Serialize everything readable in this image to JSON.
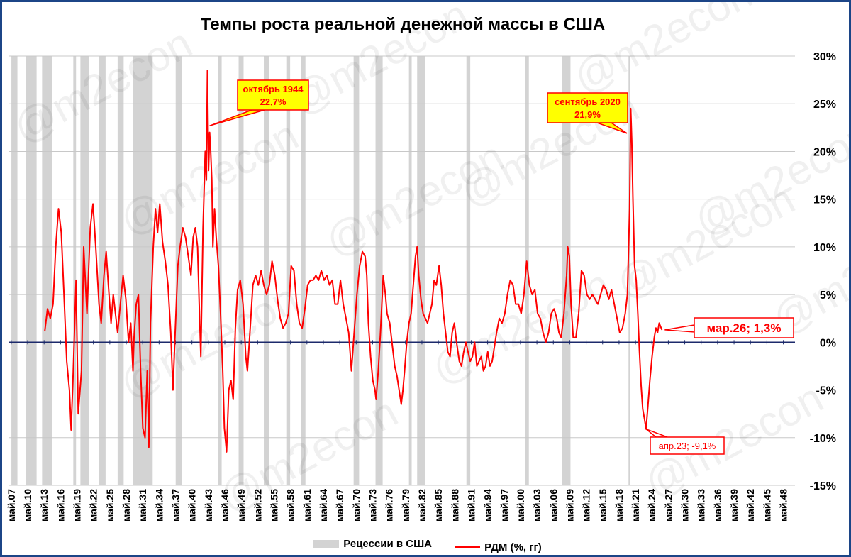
{
  "watermark": "@m2econ",
  "chart_data": {
    "type": "line",
    "title": "Темпы роста реальной денежной массы в США",
    "xlabel": "",
    "ylabel": "",
    "ylim": [
      -15,
      30
    ],
    "xlim": [
      1907.0,
      2050.5
    ],
    "y_ticks": [
      -15,
      -10,
      -5,
      0,
      5,
      10,
      15,
      20,
      25,
      30
    ],
    "y_tick_labels": [
      "-15%",
      "-10%",
      "-5%",
      "0%",
      "5%",
      "10%",
      "15%",
      "20%",
      "25%",
      "30%"
    ],
    "x_tick_labels": [
      "май.07",
      "май.10",
      "май.13",
      "май.16",
      "май.19",
      "май.22",
      "май.25",
      "май.28",
      "май.31",
      "май.34",
      "май.37",
      "май.40",
      "май.43",
      "май.46",
      "май.49",
      "май.52",
      "май.55",
      "май.58",
      "май.61",
      "май.64",
      "май.67",
      "май.70",
      "май.73",
      "май.76",
      "май.79",
      "май.82",
      "май.85",
      "май.88",
      "май.91",
      "май.94",
      "май.97",
      "май.00",
      "май.03",
      "май.06",
      "май.09",
      "май.12",
      "май.15",
      "май.18",
      "май.21",
      "май.24",
      "май.27",
      "май.30",
      "май.33",
      "май.36",
      "май.39",
      "май.42",
      "май.45",
      "май.48"
    ],
    "grid": "horizontal",
    "legend": "bottom",
    "colors": {
      "line": "#ff0000",
      "recession": "#d3d3d3",
      "zero_line": "#1c2a6b",
      "grid": "#c8c8c8"
    },
    "recessions": [
      [
        1907.4,
        1908.5
      ],
      [
        1910.1,
        1912.0
      ],
      [
        1913.0,
        1914.9
      ],
      [
        1918.7,
        1919.2
      ],
      [
        1920.0,
        1921.6
      ],
      [
        1923.4,
        1924.6
      ],
      [
        1926.8,
        1927.9
      ],
      [
        1929.6,
        1933.2
      ],
      [
        1937.4,
        1938.5
      ],
      [
        1945.1,
        1945.8
      ],
      [
        1948.9,
        1949.8
      ],
      [
        1953.5,
        1954.4
      ],
      [
        1957.6,
        1958.3
      ],
      [
        1960.3,
        1961.1
      ],
      [
        1969.9,
        1970.9
      ],
      [
        1973.9,
        1975.2
      ],
      [
        1980.0,
        1980.5
      ],
      [
        1981.5,
        1982.9
      ],
      [
        1990.5,
        1991.2
      ],
      [
        2001.2,
        2001.9
      ],
      [
        2007.9,
        2009.5
      ],
      [
        2020.1,
        2020.3
      ]
    ],
    "series": [
      {
        "name": "РДМ (%, гг)",
        "points": [
          [
            1913.5,
            1.2
          ],
          [
            1914.0,
            3.5
          ],
          [
            1914.5,
            2.5
          ],
          [
            1915.0,
            4.0
          ],
          [
            1915.5,
            10.0
          ],
          [
            1916.0,
            14.0
          ],
          [
            1916.5,
            11.5
          ],
          [
            1917.0,
            5.0
          ],
          [
            1917.5,
            -2.0
          ],
          [
            1918.0,
            -5.0
          ],
          [
            1918.3,
            -9.2
          ],
          [
            1918.7,
            -3.0
          ],
          [
            1919.2,
            6.5
          ],
          [
            1919.6,
            -7.5
          ],
          [
            1920.2,
            -3.0
          ],
          [
            1920.6,
            10.0
          ],
          [
            1921.2,
            3.0
          ],
          [
            1921.8,
            12.0
          ],
          [
            1922.3,
            14.5
          ],
          [
            1922.8,
            10.0
          ],
          [
            1923.4,
            4.0
          ],
          [
            1923.8,
            2.0
          ],
          [
            1924.3,
            7.0
          ],
          [
            1924.7,
            9.5
          ],
          [
            1925.1,
            6.0
          ],
          [
            1925.6,
            2.0
          ],
          [
            1926.0,
            5.0
          ],
          [
            1926.4,
            3.0
          ],
          [
            1926.8,
            1.0
          ],
          [
            1927.3,
            4.0
          ],
          [
            1927.8,
            7.0
          ],
          [
            1928.3,
            4.5
          ],
          [
            1928.8,
            0.0
          ],
          [
            1929.2,
            2.0
          ],
          [
            1929.6,
            -3.0
          ],
          [
            1929.8,
            0.5
          ],
          [
            1930.2,
            4.0
          ],
          [
            1930.6,
            5.0
          ],
          [
            1931.0,
            -3.0
          ],
          [
            1931.4,
            -9.0
          ],
          [
            1931.8,
            -10.0
          ],
          [
            1932.2,
            -3.0
          ],
          [
            1932.5,
            -11.0
          ],
          [
            1932.8,
            2.0
          ],
          [
            1933.3,
            10.0
          ],
          [
            1933.7,
            14.0
          ],
          [
            1934.1,
            11.5
          ],
          [
            1934.5,
            14.5
          ],
          [
            1935.0,
            10.5
          ],
          [
            1935.5,
            8.5
          ],
          [
            1936.0,
            6.0
          ],
          [
            1936.5,
            1.0
          ],
          [
            1936.9,
            -5.0
          ],
          [
            1937.3,
            1.0
          ],
          [
            1937.8,
            8.0
          ],
          [
            1938.2,
            10.0
          ],
          [
            1938.7,
            12.0
          ],
          [
            1939.2,
            11.0
          ],
          [
            1939.7,
            9.0
          ],
          [
            1940.2,
            7.0
          ],
          [
            1940.6,
            11.0
          ],
          [
            1941.0,
            12.0
          ],
          [
            1941.4,
            10.0
          ],
          [
            1941.7,
            4.0
          ],
          [
            1942.0,
            -1.5
          ],
          [
            1942.4,
            12.0
          ],
          [
            1942.8,
            20.0
          ],
          [
            1943.0,
            17.0
          ],
          [
            1943.2,
            28.5
          ],
          [
            1943.4,
            18.0
          ],
          [
            1943.6,
            22.0
          ],
          [
            1943.8,
            20.0
          ],
          [
            1944.0,
            17.0
          ],
          [
            1944.2,
            10.0
          ],
          [
            1944.5,
            14.0
          ],
          [
            1944.8,
            11.0
          ],
          [
            1945.2,
            8.0
          ],
          [
            1945.6,
            3.0
          ],
          [
            1946.0,
            -3.0
          ],
          [
            1946.3,
            -9.0
          ],
          [
            1946.7,
            -11.5
          ],
          [
            1947.1,
            -5.0
          ],
          [
            1947.5,
            -4.0
          ],
          [
            1947.9,
            -6.0
          ],
          [
            1948.3,
            1.5
          ],
          [
            1948.7,
            5.5
          ],
          [
            1949.2,
            6.5
          ],
          [
            1949.7,
            4.0
          ],
          [
            1950.2,
            -1.5
          ],
          [
            1950.5,
            -3.0
          ],
          [
            1950.9,
            0.5
          ],
          [
            1951.5,
            6.0
          ],
          [
            1952.0,
            7.0
          ],
          [
            1952.5,
            6.0
          ],
          [
            1953.0,
            7.5
          ],
          [
            1953.5,
            6.0
          ],
          [
            1954.0,
            5.0
          ],
          [
            1954.5,
            6.0
          ],
          [
            1955.0,
            8.5
          ],
          [
            1955.5,
            7.0
          ],
          [
            1956.0,
            4.5
          ],
          [
            1956.5,
            2.5
          ],
          [
            1957.0,
            1.5
          ],
          [
            1957.5,
            2.0
          ],
          [
            1958.0,
            3.0
          ],
          [
            1958.5,
            8.0
          ],
          [
            1959.0,
            7.5
          ],
          [
            1959.5,
            4.0
          ],
          [
            1960.0,
            2.0
          ],
          [
            1960.5,
            1.5
          ],
          [
            1961.0,
            3.5
          ],
          [
            1961.5,
            6.0
          ],
          [
            1962.0,
            6.5
          ],
          [
            1962.5,
            6.5
          ],
          [
            1963.0,
            7.0
          ],
          [
            1963.5,
            6.5
          ],
          [
            1964.0,
            7.5
          ],
          [
            1964.5,
            6.5
          ],
          [
            1965.0,
            7.0
          ],
          [
            1965.5,
            6.0
          ],
          [
            1966.0,
            6.5
          ],
          [
            1966.5,
            4.0
          ],
          [
            1967.0,
            4.0
          ],
          [
            1967.5,
            6.5
          ],
          [
            1968.0,
            4.0
          ],
          [
            1968.5,
            2.5
          ],
          [
            1969.0,
            1.0
          ],
          [
            1969.5,
            -3.0
          ],
          [
            1970.0,
            1.0
          ],
          [
            1970.5,
            5.0
          ],
          [
            1971.0,
            8.0
          ],
          [
            1971.5,
            9.5
          ],
          [
            1972.0,
            9.0
          ],
          [
            1972.3,
            7.0
          ],
          [
            1972.6,
            2.0
          ],
          [
            1973.0,
            -1.5
          ],
          [
            1973.4,
            -4.0
          ],
          [
            1973.8,
            -5.0
          ],
          [
            1974.0,
            -6.0
          ],
          [
            1974.4,
            -3.0
          ],
          [
            1974.8,
            1.0
          ],
          [
            1975.3,
            7.0
          ],
          [
            1975.7,
            5.0
          ],
          [
            1976.0,
            3.0
          ],
          [
            1976.5,
            2.0
          ],
          [
            1977.0,
            -0.5
          ],
          [
            1977.4,
            -2.5
          ],
          [
            1977.8,
            -3.5
          ],
          [
            1978.2,
            -5.0
          ],
          [
            1978.6,
            -6.5
          ],
          [
            1978.9,
            -5.0
          ],
          [
            1979.2,
            -3.0
          ],
          [
            1979.6,
            0.0
          ],
          [
            1980.0,
            2.0
          ],
          [
            1980.4,
            3.0
          ],
          [
            1980.8,
            6.0
          ],
          [
            1981.2,
            9.0
          ],
          [
            1981.5,
            10.0
          ],
          [
            1981.8,
            7.0
          ],
          [
            1982.2,
            4.5
          ],
          [
            1982.6,
            3.0
          ],
          [
            1983.0,
            2.5
          ],
          [
            1983.4,
            2.0
          ],
          [
            1983.8,
            3.0
          ],
          [
            1984.2,
            4.0
          ],
          [
            1984.6,
            6.5
          ],
          [
            1985.0,
            6.0
          ],
          [
            1985.5,
            8.0
          ],
          [
            1985.9,
            6.0
          ],
          [
            1986.3,
            3.0
          ],
          [
            1986.7,
            1.0
          ],
          [
            1987.1,
            -1.0
          ],
          [
            1987.5,
            -1.5
          ],
          [
            1987.9,
            1.0
          ],
          [
            1988.3,
            2.0
          ],
          [
            1988.7,
            0.0
          ],
          [
            1989.2,
            -2.0
          ],
          [
            1989.6,
            -2.5
          ],
          [
            1990.0,
            -1.0
          ],
          [
            1990.4,
            0.0
          ],
          [
            1990.8,
            -1.0
          ],
          [
            1991.2,
            -2.0
          ],
          [
            1991.6,
            -1.5
          ],
          [
            1992.0,
            0.0
          ],
          [
            1992.4,
            -2.5
          ],
          [
            1992.8,
            -2.0
          ],
          [
            1993.2,
            -1.5
          ],
          [
            1993.6,
            -3.0
          ],
          [
            1994.0,
            -2.5
          ],
          [
            1994.4,
            -1.0
          ],
          [
            1994.8,
            -2.5
          ],
          [
            1995.2,
            -2.0
          ],
          [
            1995.6,
            -0.5
          ],
          [
            1996.0,
            1.0
          ],
          [
            1996.5,
            2.5
          ],
          [
            1997.0,
            2.0
          ],
          [
            1997.5,
            3.0
          ],
          [
            1998.0,
            5.0
          ],
          [
            1998.5,
            6.5
          ],
          [
            1999.0,
            6.0
          ],
          [
            1999.5,
            4.0
          ],
          [
            2000.0,
            4.0
          ],
          [
            2000.5,
            3.0
          ],
          [
            2001.0,
            5.0
          ],
          [
            2001.5,
            8.5
          ],
          [
            2002.0,
            6.0
          ],
          [
            2002.5,
            5.0
          ],
          [
            2003.0,
            5.5
          ],
          [
            2003.5,
            3.0
          ],
          [
            2004.0,
            2.5
          ],
          [
            2004.5,
            1.0
          ],
          [
            2005.0,
            0.0
          ],
          [
            2005.5,
            1.0
          ],
          [
            2006.0,
            3.0
          ],
          [
            2006.5,
            3.5
          ],
          [
            2007.0,
            2.5
          ],
          [
            2007.4,
            1.0
          ],
          [
            2007.8,
            0.5
          ],
          [
            2008.3,
            3.0
          ],
          [
            2008.8,
            7.0
          ],
          [
            2009.0,
            10.0
          ],
          [
            2009.3,
            9.0
          ],
          [
            2009.6,
            4.0
          ],
          [
            2010.0,
            0.5
          ],
          [
            2010.5,
            0.5
          ],
          [
            2011.0,
            3.0
          ],
          [
            2011.5,
            7.5
          ],
          [
            2012.0,
            7.0
          ],
          [
            2012.5,
            5.0
          ],
          [
            2013.0,
            4.5
          ],
          [
            2013.5,
            5.0
          ],
          [
            2014.0,
            4.5
          ],
          [
            2014.5,
            4.0
          ],
          [
            2015.0,
            5.0
          ],
          [
            2015.5,
            6.0
          ],
          [
            2016.0,
            5.5
          ],
          [
            2016.5,
            4.5
          ],
          [
            2017.0,
            5.5
          ],
          [
            2017.5,
            4.0
          ],
          [
            2018.0,
            2.5
          ],
          [
            2018.5,
            1.0
          ],
          [
            2019.0,
            1.5
          ],
          [
            2019.5,
            3.0
          ],
          [
            2019.9,
            5.0
          ],
          [
            2020.3,
            14.0
          ],
          [
            2020.5,
            24.5
          ],
          [
            2020.7,
            21.0
          ],
          [
            2020.9,
            15.0
          ],
          [
            2021.2,
            8.0
          ],
          [
            2021.5,
            6.5
          ],
          [
            2021.8,
            3.0
          ],
          [
            2022.1,
            -1.0
          ],
          [
            2022.4,
            -4.5
          ],
          [
            2022.7,
            -7.0
          ],
          [
            2023.0,
            -8.0
          ],
          [
            2023.3,
            -9.1
          ],
          [
            2023.6,
            -7.0
          ],
          [
            2024.0,
            -4.0
          ],
          [
            2024.4,
            -1.5
          ],
          [
            2024.8,
            0.5
          ],
          [
            2025.1,
            1.5
          ],
          [
            2025.4,
            1.0
          ],
          [
            2025.7,
            2.0
          ],
          [
            2026.2,
            1.3
          ]
        ]
      }
    ],
    "annotations": [
      {
        "text1": "октябрь 1944",
        "text2": "22,7%",
        "x": 1943.6,
        "y": 22.7
      },
      {
        "text1": "сентябрь 2020",
        "text2": "21,9%",
        "x": 2020.6,
        "y": 21.9
      },
      {
        "text": "апр.23; -9,1%",
        "x": 2023.3,
        "y": -9.1
      },
      {
        "text": "мар.26; 1,3%",
        "x": 2026.2,
        "y": 1.3
      }
    ],
    "legend_entries": [
      "Рецессии в США",
      "РДМ (%, гг)"
    ]
  }
}
